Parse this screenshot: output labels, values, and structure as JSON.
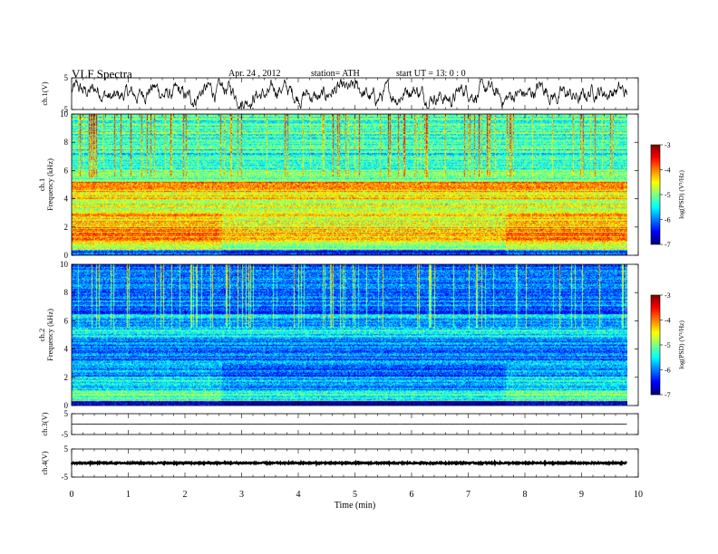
{
  "header": {
    "title": "VLF  Spectra",
    "date": "Apr. 24 , 2012",
    "station": "station= ATH",
    "start": "start  UT  =    13: 0   : 0"
  },
  "chart_data": {
    "type": "heatmap",
    "xlabel": "Time  (min)",
    "xlim": [
      0,
      10
    ],
    "x_ticks": [
      0,
      1,
      2,
      3,
      4,
      5,
      6,
      7,
      8,
      9,
      10
    ],
    "data_end_min": 9.8,
    "panels": [
      {
        "id": "ch1-wave",
        "kind": "waveform",
        "ylabel": "ch.1(V)",
        "ylim": [
          -5,
          5
        ],
        "y_ticks": [
          5,
          -5
        ],
        "amplitude": 2.2,
        "color": "#000000"
      },
      {
        "id": "ch1-spec",
        "kind": "spectrogram",
        "ylabel": "ch.1\nFrequency  (kHz)",
        "ylim": [
          0,
          10
        ],
        "y_ticks": [
          0,
          2,
          4,
          6,
          8,
          10
        ],
        "colorbar": {
          "label": "log(PSD) (V²/Hz)",
          "ticks": [
            -3,
            -4,
            -5,
            -6,
            -7
          ],
          "range": [
            -7,
            -3
          ]
        },
        "bands": [
          {
            "f": [
              0,
              0.4
            ],
            "level": -6.0
          },
          {
            "f": [
              0.4,
              1.0
            ],
            "level": -4.6
          },
          {
            "f": [
              1.0,
              2.0
            ],
            "level": -4.1
          },
          {
            "f": [
              2.0,
              3.0
            ],
            "level": -4.3
          },
          {
            "f": [
              3.0,
              4.0
            ],
            "level": -4.6
          },
          {
            "f": [
              4.0,
              4.6
            ],
            "level": -4.3
          },
          {
            "f": [
              4.6,
              5.2
            ],
            "level": -3.9
          },
          {
            "f": [
              5.2,
              6.0
            ],
            "level": -5.0
          },
          {
            "f": [
              6.0,
              7.5
            ],
            "level": -5.4
          },
          {
            "f": [
              7.5,
              10.0
            ],
            "level": -5.2
          }
        ]
      },
      {
        "id": "ch2-spec",
        "kind": "spectrogram",
        "ylabel": "ch.2\nFrequency  (kHz)",
        "ylim": [
          0,
          10
        ],
        "y_ticks": [
          0,
          2,
          4,
          6,
          8,
          10
        ],
        "colorbar": {
          "label": "log(PSD) (V²/Hz)",
          "ticks": [
            -3,
            -4,
            -5,
            -6,
            -7
          ],
          "range": [
            -7,
            -3
          ]
        },
        "bands": [
          {
            "f": [
              0,
              0.3
            ],
            "level": -6.6
          },
          {
            "f": [
              0.3,
              1.0
            ],
            "level": -5.1
          },
          {
            "f": [
              1.0,
              2.0
            ],
            "level": -5.6
          },
          {
            "f": [
              2.0,
              3.5
            ],
            "level": -5.9
          },
          {
            "f": [
              3.5,
              4.8
            ],
            "level": -6.0
          },
          {
            "f": [
              4.8,
              5.6
            ],
            "level": -5.5
          },
          {
            "f": [
              5.6,
              6.5
            ],
            "level": -5.8
          },
          {
            "f": [
              6.5,
              7.0
            ],
            "level": -6.4
          },
          {
            "f": [
              7.0,
              10.0
            ],
            "level": -6.0
          }
        ]
      },
      {
        "id": "ch3-wave",
        "kind": "waveform",
        "ylabel": "ch.3(V)",
        "ylim": [
          -5,
          5
        ],
        "y_ticks": [
          5,
          -5
        ],
        "level": 0,
        "amplitude": 0.06,
        "color": "#000000"
      },
      {
        "id": "ch4-wave",
        "kind": "waveform",
        "ylabel": "ch.4(V)",
        "ylim": [
          -5,
          5
        ],
        "y_ticks": [
          5,
          -5
        ],
        "level": 0,
        "amplitude": 0.25,
        "color": "#000000"
      }
    ]
  }
}
